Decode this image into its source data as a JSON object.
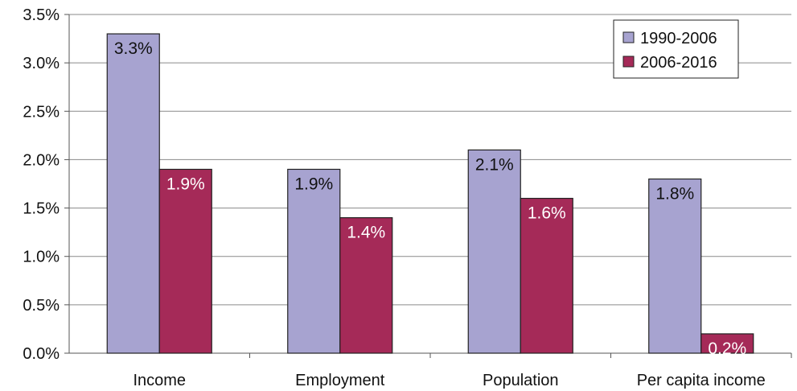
{
  "chart_data": {
    "type": "bar",
    "categories": [
      "Income",
      "Employment",
      "Population",
      "Per capita income"
    ],
    "series": [
      {
        "name": "1990-2006",
        "values": [
          3.3,
          1.9,
          2.1,
          1.8
        ],
        "labels": [
          "3.3%",
          "1.9%",
          "2.1%",
          "1.8%"
        ],
        "color": "#a7a3d0"
      },
      {
        "name": "2006-2016",
        "values": [
          1.9,
          1.4,
          1.6,
          0.2
        ],
        "labels": [
          "1.9%",
          "1.4%",
          "1.6%",
          "0.2%"
        ],
        "color": "#a52a58"
      }
    ],
    "ylim": [
      0,
      3.5
    ],
    "yticks": [
      {
        "value": 0.0,
        "label": "0.0%"
      },
      {
        "value": 0.5,
        "label": "0.5%"
      },
      {
        "value": 1.0,
        "label": "1.0%"
      },
      {
        "value": 1.5,
        "label": "1.5%"
      },
      {
        "value": 2.0,
        "label": "2.0%"
      },
      {
        "value": 2.5,
        "label": "2.5%"
      },
      {
        "value": 3.0,
        "label": "3.0%"
      },
      {
        "value": 3.5,
        "label": "3.5%"
      }
    ],
    "grid": true,
    "legend": "top-right",
    "title": "",
    "xlabel": "",
    "ylabel": ""
  }
}
